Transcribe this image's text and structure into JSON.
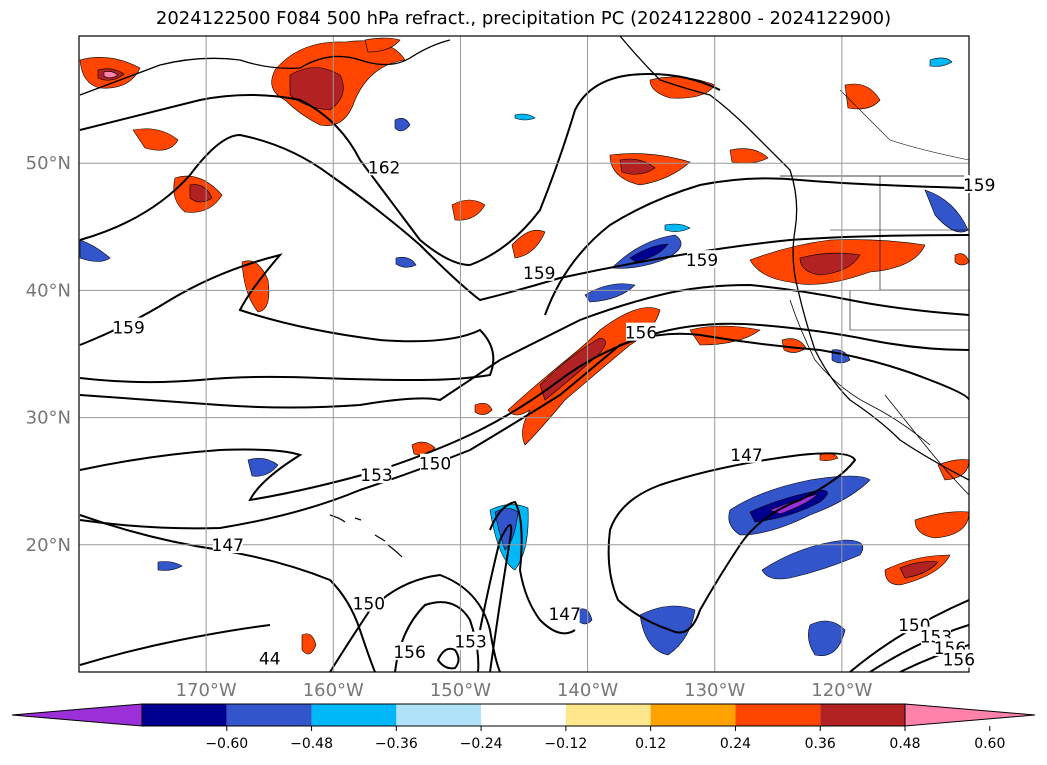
{
  "title": "2024122500 F084 500 hPa refract., precipitation PC (2024122800 - 2024122900)",
  "map": {
    "lon_range": [
      -180,
      -110
    ],
    "lat_range": [
      10,
      60
    ],
    "lat_ticks": [
      {
        "value": 50,
        "label": "50°N"
      },
      {
        "value": 40,
        "label": "40°N"
      },
      {
        "value": 30,
        "label": "30°N"
      },
      {
        "value": 20,
        "label": "20°N"
      }
    ],
    "lon_ticks": [
      {
        "value": -170,
        "label": "170°W"
      },
      {
        "value": -160,
        "label": "160°W"
      },
      {
        "value": -150,
        "label": "150°W"
      },
      {
        "value": -140,
        "label": "140°W"
      },
      {
        "value": -130,
        "label": "130°W"
      },
      {
        "value": -120,
        "label": "120°W"
      }
    ],
    "grid": true,
    "contour_labels": [
      {
        "text": "162",
        "lon": -156.0,
        "lat": 49.6
      },
      {
        "text": "159",
        "lon": -143.8,
        "lat": 41.3
      },
      {
        "text": "159",
        "lon": -131.0,
        "lat": 42.3
      },
      {
        "text": "159",
        "lon": -176.1,
        "lat": 37.0
      },
      {
        "text": "156",
        "lon": -135.8,
        "lat": 36.6
      },
      {
        "text": "153",
        "lon": -156.6,
        "lat": 25.4
      },
      {
        "text": "150",
        "lon": -152.0,
        "lat": 26.3
      },
      {
        "text": "147",
        "lon": -127.5,
        "lat": 27.0
      },
      {
        "text": "147",
        "lon": -168.3,
        "lat": 19.9
      },
      {
        "text": "150",
        "lon": -157.2,
        "lat": 15.3
      },
      {
        "text": "147",
        "lon": -141.8,
        "lat": 14.5
      },
      {
        "text": "156",
        "lon": -154.0,
        "lat": 11.5
      },
      {
        "text": "153",
        "lon": -149.2,
        "lat": 12.3
      },
      {
        "text": "44",
        "lon": -165.0,
        "lat": 11.0
      },
      {
        "text": "150",
        "lon": -114.3,
        "lat": 13.6
      },
      {
        "text": "153",
        "lon": -112.6,
        "lat": 12.7
      },
      {
        "text": "156",
        "lon": -111.5,
        "lat": 11.8
      },
      {
        "text": "156",
        "lon": -110.8,
        "lat": 10.9
      },
      {
        "text": "159",
        "lon": -109.2,
        "lat": 48.2
      }
    ]
  },
  "colorbar": {
    "colors": [
      "#9b30d9",
      "#000090",
      "#3355cc",
      "#00b8f8",
      "#b0e2fa",
      "#ffffff",
      "#fde68c",
      "#ffa200",
      "#ff4500",
      "#b22222",
      "#ff82ab"
    ],
    "tick_values": [
      -0.6,
      -0.48,
      -0.36,
      -0.24,
      -0.12,
      0.12,
      0.24,
      0.36,
      0.48,
      0.6
    ],
    "tick_labels": [
      "−0.60",
      "−0.48",
      "−0.36",
      "−0.24",
      "−0.12",
      "0.12",
      "0.24",
      "0.36",
      "0.48",
      "0.60"
    ],
    "extend": "both"
  }
}
